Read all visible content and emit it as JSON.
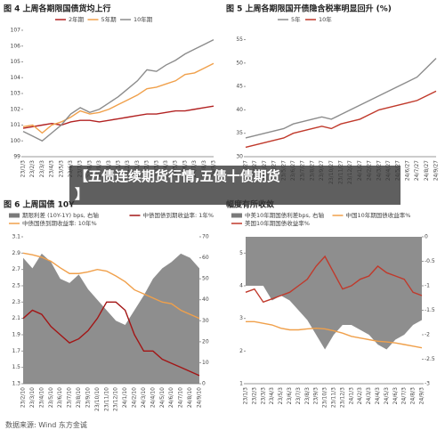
{
  "chart_data": [
    {
      "type": "line",
      "title": "图 4  上周各期限国债货均上行",
      "categories": [
        "23/1/3",
        "23/2/3",
        "23/3/3",
        "23/4/3",
        "23/5/3",
        "23/6/3",
        "23/7/3",
        "23/8/3",
        "23/9/3",
        "23/10/3",
        "23/11/3",
        "23/12/3",
        "24/1/3",
        "24/2/3",
        "24/3/3",
        "24/4/3",
        "24/5/3",
        "24/6/3",
        "24/7/3",
        "24/8/3",
        "24/9/3"
      ],
      "ylim": [
        99,
        107
      ],
      "yticks": [
        99,
        100,
        101,
        102,
        103,
        104,
        105,
        106,
        107
      ],
      "series": [
        {
          "name": "2年期",
          "color": "#b22222",
          "values": [
            100.8,
            100.9,
            101.0,
            101.1,
            101.0,
            101.2,
            101.3,
            101.3,
            101.2,
            101.3,
            101.4,
            101.5,
            101.6,
            101.7,
            101.7,
            101.8,
            101.9,
            101.9,
            102.0,
            102.1,
            102.2
          ]
        },
        {
          "name": "5年期",
          "color": "#f0a04b",
          "values": [
            100.9,
            101.0,
            100.5,
            101.0,
            101.2,
            101.5,
            101.9,
            101.7,
            101.8,
            102.0,
            102.3,
            102.6,
            102.9,
            103.3,
            103.4,
            103.6,
            103.8,
            104.2,
            104.3,
            104.6,
            104.9
          ]
        },
        {
          "name": "10年期",
          "color": "#8c8c8c",
          "values": [
            100.6,
            100.3,
            100.0,
            100.5,
            101.0,
            101.7,
            102.1,
            101.8,
            102.0,
            102.4,
            102.8,
            103.3,
            103.8,
            104.5,
            104.4,
            104.8,
            105.1,
            105.5,
            105.8,
            106.1,
            106.4
          ]
        }
      ]
    },
    {
      "type": "line",
      "title": "图 5  上周各期限国开债隐含税率明显回升 (%)",
      "categories": [
        "23/1/27",
        "23/2/27",
        "23/3/27",
        "23/4/27",
        "23/5/27",
        "23/6/27",
        "23/7/27",
        "23/8/27",
        "23/9/27",
        "23/10/27",
        "23/11/27",
        "23/12/27",
        "24/1/27",
        "24/2/27",
        "24/3/27",
        "24/4/27",
        "24/5/27",
        "24/6/27",
        "24/7/27",
        "24/8/27",
        "24/9/27"
      ],
      "ylim": [
        30,
        57
      ],
      "yticks": [
        30,
        35,
        40,
        45,
        50,
        55
      ],
      "series": [
        {
          "name": "5年",
          "color": "#8c8c8c",
          "values": [
            34,
            34.5,
            35,
            35.5,
            36,
            37,
            37.5,
            38,
            38.5,
            38,
            39,
            40,
            41,
            42,
            43,
            44,
            45,
            46,
            47,
            49,
            51
          ]
        },
        {
          "name": "10年",
          "color": "#c0392b",
          "values": [
            32,
            32.5,
            33,
            33.5,
            34,
            35,
            35.5,
            36,
            36.5,
            36,
            37,
            37.5,
            38,
            39,
            40,
            40.5,
            41,
            41.5,
            42,
            43,
            44
          ]
        }
      ]
    },
    {
      "type": "line",
      "title": "图 6  上周国债 10Y",
      "categories": [
        "23/2/10",
        "23/3/10",
        "23/4/10",
        "23/5/10",
        "23/6/10",
        "23/7/10",
        "23/8/10",
        "23/9/10",
        "23/10/10",
        "23/11/10",
        "23/12/10",
        "24/1/10",
        "24/2/10",
        "24/3/10",
        "24/4/10",
        "24/5/10",
        "24/6/10",
        "24/7/10",
        "24/8/10",
        "24/9/10"
      ],
      "ylim": [
        1.3,
        3.1
      ],
      "yticks": [
        1.3,
        1.5,
        1.7,
        1.9,
        2.1,
        2.3,
        2.5,
        2.7,
        2.9,
        3.1
      ],
      "y2lim": [
        0,
        70
      ],
      "y2ticks": [
        0,
        10,
        20,
        30,
        40,
        50,
        60,
        70
      ],
      "series": [
        {
          "name": "期限利差 (10Y-1Y) bps, 右轴",
          "color": "#7a7a7a",
          "axis": "y2",
          "style": "area",
          "values": [
            60,
            55,
            62,
            58,
            50,
            48,
            52,
            45,
            40,
            35,
            30,
            28,
            35,
            42,
            50,
            55,
            58,
            62,
            60,
            55
          ]
        },
        {
          "name": "中债国债到期收益率: 1年%",
          "color": "#a31515",
          "values": [
            2.1,
            2.2,
            2.15,
            2.0,
            1.9,
            1.8,
            1.85,
            1.95,
            2.1,
            2.3,
            2.3,
            2.2,
            1.9,
            1.7,
            1.7,
            1.6,
            1.55,
            1.5,
            1.45,
            1.4
          ]
        },
        {
          "name": "中债国债到期收益率: 10年%",
          "color": "#f0a04b",
          "values": [
            2.9,
            2.88,
            2.85,
            2.8,
            2.72,
            2.65,
            2.65,
            2.67,
            2.7,
            2.68,
            2.62,
            2.55,
            2.45,
            2.4,
            2.35,
            2.3,
            2.28,
            2.2,
            2.15,
            2.1
          ]
        }
      ]
    },
    {
      "type": "line",
      "title": "幅度有所收敛",
      "categories": [
        "23/1/3",
        "23/2/3",
        "23/3/3",
        "23/4/3",
        "23/5/3",
        "23/6/3",
        "23/7/3",
        "23/8/3",
        "23/9/3",
        "23/10/3",
        "23/11/3",
        "23/12/3",
        "24/1/3",
        "24/2/3",
        "24/3/3",
        "24/4/3",
        "24/5/3",
        "24/6/3",
        "24/7/3",
        "24/8/3",
        "24/9/3"
      ],
      "ylim": [
        1,
        5.5
      ],
      "yticks": [
        1,
        2,
        3,
        4,
        5
      ],
      "y2lim": [
        -3,
        0
      ],
      "y2ticks": [
        -3,
        -2.5,
        -2,
        -1.5,
        -1,
        -0.5,
        0
      ],
      "series": [
        {
          "name": "中美10年期国债利差bps, 右轴",
          "color": "#7a7a7a",
          "axis": "y2",
          "style": "area",
          "values": [
            -1.0,
            -1.0,
            -1.0,
            -1.3,
            -1.2,
            -1.3,
            -1.5,
            -1.7,
            -2.0,
            -2.3,
            -2.0,
            -1.8,
            -1.8,
            -1.9,
            -2.0,
            -2.2,
            -2.3,
            -2.1,
            -2.0,
            -1.8,
            -1.7
          ]
        },
        {
          "name": "中国10年期国债收益率%",
          "color": "#f0a04b",
          "values": [
            2.9,
            2.9,
            2.85,
            2.8,
            2.7,
            2.65,
            2.65,
            2.68,
            2.7,
            2.68,
            2.62,
            2.55,
            2.45,
            2.4,
            2.35,
            2.3,
            2.28,
            2.25,
            2.2,
            2.15,
            2.1
          ]
        },
        {
          "name": "美国10年期国债收益率%",
          "color": "#c0392b",
          "values": [
            3.8,
            3.9,
            3.5,
            3.6,
            3.7,
            3.8,
            4.0,
            4.2,
            4.6,
            4.9,
            4.4,
            3.9,
            4.0,
            4.2,
            4.3,
            4.6,
            4.4,
            4.3,
            4.2,
            3.8,
            3.7
          ]
        }
      ]
    }
  ],
  "overlay": {
    "lines": [
      "【五债连续期货行情,五债十债期货",
      "】"
    ]
  },
  "source": "数据来源: Wind 东方金诚"
}
